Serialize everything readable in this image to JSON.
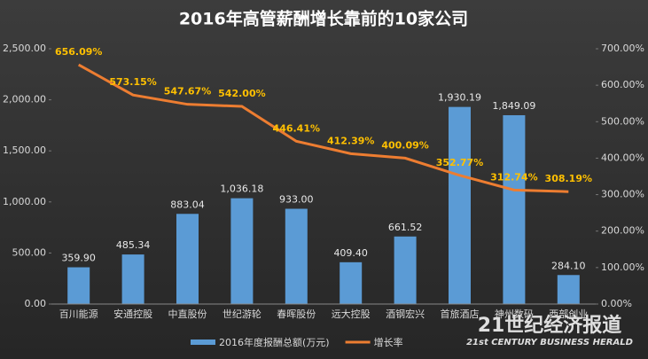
{
  "chart_data": {
    "type": "bar",
    "title": "2016年高管薪酬增长靠前的10家公司",
    "categories": [
      "百川能源",
      "安通控股",
      "中直股份",
      "世纪游轮",
      "春晖股份",
      "远大控股",
      "酒钢宏兴",
      "首旅酒店",
      "神州数码",
      "西部创业"
    ],
    "series": [
      {
        "name": "2016年度报酬总额(万元)",
        "type": "bar",
        "color": "#5b9bd5",
        "values": [
          359.9,
          485.34,
          883.04,
          1036.18,
          933.0,
          409.4,
          661.52,
          1930.19,
          1849.09,
          284.1
        ],
        "value_labels": [
          "359.90",
          "485.34",
          "883.04",
          "1,036.18",
          "933.00",
          "409.40",
          "661.52",
          "1,930.19",
          "1,849.09",
          "284.10"
        ]
      },
      {
        "name": "增长率",
        "type": "line",
        "axis": "y2",
        "color": "#ed7d31",
        "values": [
          656.09,
          573.15,
          547.67,
          542.0,
          446.41,
          412.39,
          400.09,
          352.77,
          312.74,
          308.19
        ],
        "value_labels": [
          "656.09%",
          "573.15%",
          "547.67%",
          "542.00%",
          "446.41%",
          "412.39%",
          "400.09%",
          "352.77%",
          "312.74%",
          "308.19%"
        ]
      }
    ],
    "ylim": [
      0,
      2500
    ],
    "yticks": [
      {
        "value": 0,
        "label": "0.00"
      },
      {
        "value": 500,
        "label": "500.00"
      },
      {
        "value": 1000,
        "label": "1,000.00"
      },
      {
        "value": 1500,
        "label": "1,500.00"
      },
      {
        "value": 2000,
        "label": "2,000.00"
      },
      {
        "value": 2500,
        "label": "2,500.00"
      }
    ],
    "y2lim": [
      0,
      700
    ],
    "y2ticks": [
      {
        "value": 0,
        "label": "0.00%"
      },
      {
        "value": 100,
        "label": "100.00%"
      },
      {
        "value": 200,
        "label": "200.00%"
      },
      {
        "value": 300,
        "label": "300.00%"
      },
      {
        "value": 400,
        "label": "400.00%"
      },
      {
        "value": 500,
        "label": "500.00%"
      },
      {
        "value": 600,
        "label": "600.00%"
      },
      {
        "value": 700,
        "label": "700.00%"
      }
    ],
    "grid": false,
    "legend": "bottom",
    "watermark": {
      "title": "21世纪经济报道",
      "subtitle": "21st CENTURY BUSINESS HERALD"
    }
  }
}
